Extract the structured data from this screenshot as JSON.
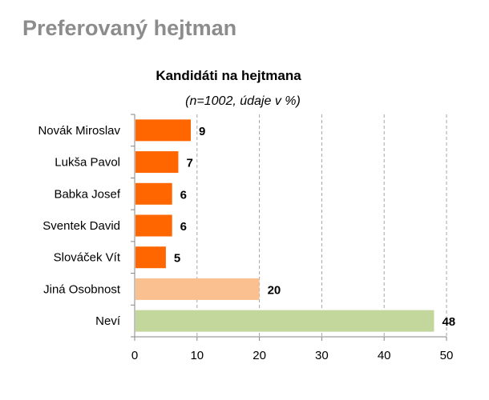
{
  "slide_title": "Preferovaný hejtman",
  "chart_data": {
    "type": "bar",
    "orientation": "horizontal",
    "title": "Kandidáti na hejtmana",
    "subtitle": "(n=1002, údaje v %)",
    "categories": [
      "Novák Miroslav",
      "Lukša Pavol",
      "Babka Josef",
      "Sventek David",
      "Slováček Vít",
      "Jiná Osobnost",
      "Neví"
    ],
    "values": [
      9,
      7,
      6,
      6,
      5,
      20,
      48
    ],
    "bar_colors": [
      "#ff6600",
      "#ff6600",
      "#ff6600",
      "#ff6600",
      "#ff6600",
      "#fac090",
      "#c3d69b"
    ],
    "xlim": [
      0,
      50
    ],
    "xticks": [
      0,
      10,
      20,
      30,
      40,
      50
    ],
    "grid": "vertical dashed",
    "legend": "none"
  }
}
